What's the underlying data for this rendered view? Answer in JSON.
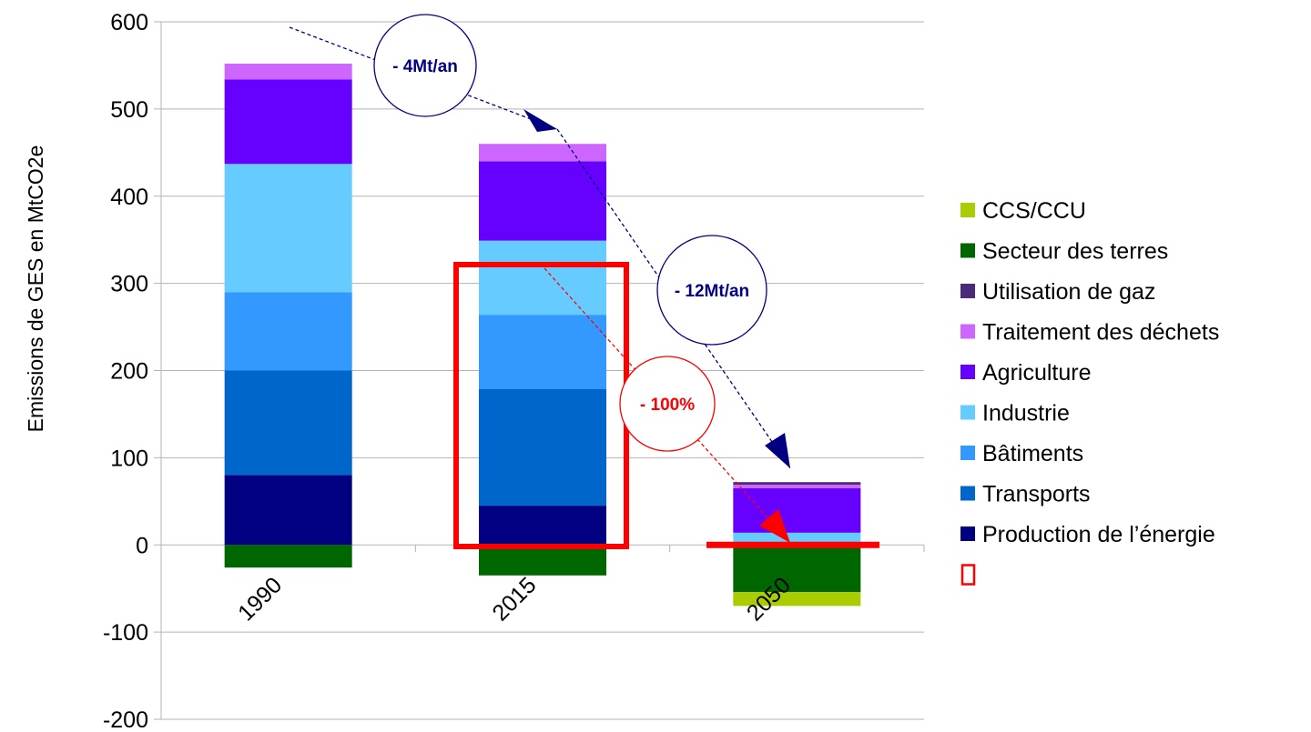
{
  "chart_data": {
    "type": "bar",
    "stacked": true,
    "ylabel": "Emissions de GES en MtCO2e",
    "ylim": [
      -200,
      600
    ],
    "yticks": [
      -200,
      -100,
      0,
      100,
      200,
      300,
      400,
      500,
      600
    ],
    "grid": true,
    "legend_position": "right",
    "categories": [
      "1990",
      "2015",
      "2050"
    ],
    "series": [
      {
        "name": "Production de l’énergie",
        "color": "#000080",
        "values": [
          80,
          45,
          0
        ]
      },
      {
        "name": "Transports",
        "color": "#0066cc",
        "values": [
          120,
          134,
          0
        ]
      },
      {
        "name": "Bâtiments",
        "color": "#3399ff",
        "values": [
          90,
          85,
          0
        ]
      },
      {
        "name": "Industrie",
        "color": "#66ccff",
        "values": [
          147,
          85,
          14
        ]
      },
      {
        "name": "Agriculture",
        "color": "#6600ff",
        "values": [
          97,
          91,
          51
        ]
      },
      {
        "name": "Traitement des déchets",
        "color": "#cc66ff",
        "values": [
          18,
          20,
          4
        ]
      },
      {
        "name": "Utilisation de gaz",
        "color": "#4b2a7a",
        "values": [
          0,
          0,
          3
        ]
      },
      {
        "name": "Secteur des terres",
        "color": "#006600",
        "values": [
          -26,
          -35,
          -54
        ]
      },
      {
        "name": "CCS/CCU",
        "color": "#aacc00",
        "values": [
          0,
          0,
          -16
        ]
      }
    ],
    "legend_order": [
      "CCS/CCU",
      "Secteur des terres",
      "Utilisation de gaz",
      "Traitement des déchets",
      "Agriculture",
      "Industrie",
      "Bâtiments",
      "Transports",
      "Production de l’énergie"
    ],
    "annotations": [
      {
        "text": "- 4Mt/an",
        "color": "#000080"
      },
      {
        "text": "- 12Mt/an",
        "color": "#000080"
      },
      {
        "text": "- 100%",
        "color": "#ff0000"
      }
    ],
    "highlight_color": "#ff0000"
  }
}
